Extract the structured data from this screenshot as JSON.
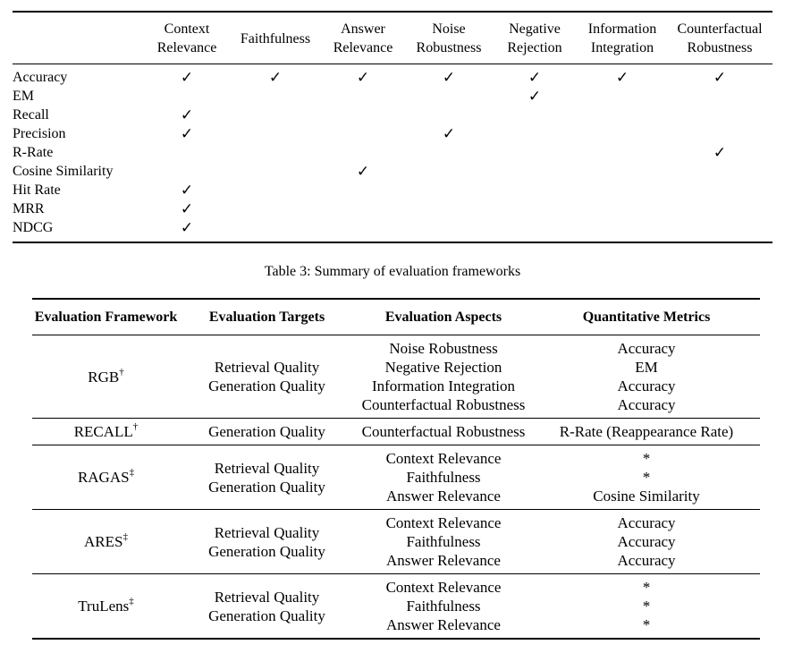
{
  "page": {
    "background_color": "#ffffff",
    "text_color": "#000000"
  },
  "caption": "Table 3: Summary of evaluation frameworks",
  "matrix_table": {
    "check_glyph": "✓",
    "corner_label": "",
    "columns": [
      "Context\nRelevance",
      "Faithfulness",
      "Answer\nRelevance",
      "Noise\nRobustness",
      "Negative\nRejection",
      "Information\nIntegration",
      "Counterfactual\nRobustness"
    ],
    "rows": [
      {
        "metric": "Accuracy",
        "checks": [
          1,
          1,
          1,
          1,
          1,
          1,
          1
        ]
      },
      {
        "metric": "EM",
        "checks": [
          0,
          0,
          0,
          0,
          1,
          0,
          0
        ]
      },
      {
        "metric": "Recall",
        "checks": [
          1,
          0,
          0,
          0,
          0,
          0,
          0
        ]
      },
      {
        "metric": "Precision",
        "checks": [
          1,
          0,
          0,
          1,
          0,
          0,
          0
        ]
      },
      {
        "metric": "R-Rate",
        "checks": [
          0,
          0,
          0,
          0,
          0,
          0,
          1
        ]
      },
      {
        "metric": "Cosine Similarity",
        "checks": [
          0,
          0,
          1,
          0,
          0,
          0,
          0
        ]
      },
      {
        "metric": "Hit Rate",
        "checks": [
          1,
          0,
          0,
          0,
          0,
          0,
          0
        ]
      },
      {
        "metric": "MRR",
        "checks": [
          1,
          0,
          0,
          0,
          0,
          0,
          0
        ]
      },
      {
        "metric": "NDCG",
        "checks": [
          1,
          0,
          0,
          0,
          0,
          0,
          0
        ]
      }
    ]
  },
  "frameworks_table": {
    "columns": [
      "Evaluation Framework",
      "Evaluation Targets",
      "Evaluation Aspects",
      "Quantitative Metrics"
    ],
    "rows": [
      {
        "framework": "RGB",
        "marker": "†",
        "targets": [
          "Retrieval Quality",
          "Generation Quality"
        ],
        "aspects": [
          "Noise Robustness",
          "Negative Rejection",
          "Information Integration",
          "Counterfactual Robustness"
        ],
        "metrics": [
          "Accuracy",
          "EM",
          "Accuracy",
          "Accuracy"
        ]
      },
      {
        "framework": "RECALL",
        "marker": "†",
        "targets": [
          "Generation Quality"
        ],
        "aspects": [
          "Counterfactual Robustness"
        ],
        "metrics": [
          "R-Rate (Reappearance Rate)"
        ]
      },
      {
        "framework": "RAGAS",
        "marker": "‡",
        "targets": [
          "Retrieval Quality",
          "Generation Quality"
        ],
        "aspects": [
          "Context Relevance",
          "Faithfulness",
          "Answer Relevance"
        ],
        "metrics": [
          "*",
          "*",
          "Cosine Similarity"
        ]
      },
      {
        "framework": "ARES",
        "marker": "‡",
        "targets": [
          "Retrieval Quality",
          "Generation Quality"
        ],
        "aspects": [
          "Context Relevance",
          "Faithfulness",
          "Answer Relevance"
        ],
        "metrics": [
          "Accuracy",
          "Accuracy",
          "Accuracy"
        ]
      },
      {
        "framework": "TruLens",
        "marker": "‡",
        "targets": [
          "Retrieval Quality",
          "Generation Quality"
        ],
        "aspects": [
          "Context Relevance",
          "Faithfulness",
          "Answer Relevance"
        ],
        "metrics": [
          "*",
          "*",
          "*"
        ]
      }
    ]
  }
}
